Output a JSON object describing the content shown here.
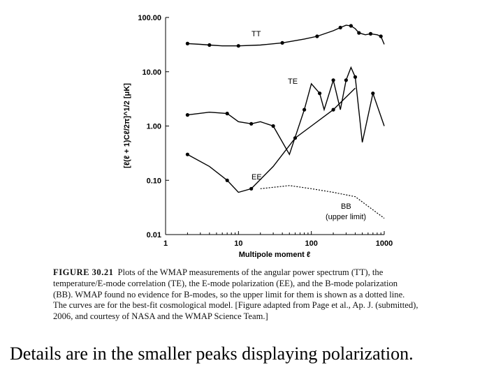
{
  "chart_data": {
    "type": "line",
    "title": "",
    "xlabel": "Multipole moment ℓ",
    "ylabel": "[ℓ(ℓ + 1)Cℓ/2π]^1/2 [μK]",
    "xscale": "log",
    "yscale": "log",
    "xlim": [
      1,
      1000
    ],
    "ylim": [
      0.01,
      100
    ],
    "x_ticks": [
      "1",
      "10",
      "100",
      "1000"
    ],
    "y_ticks": [
      "100.00",
      "10.00",
      "1.00",
      "0.10",
      "0.01"
    ],
    "series": [
      {
        "name": "TT",
        "x": [
          2,
          3,
          4,
          6,
          10,
          20,
          40,
          80,
          120,
          200,
          250,
          300,
          350,
          400,
          450,
          550,
          650,
          800,
          900,
          1000
        ],
        "y": [
          33,
          32,
          31,
          30,
          30,
          31,
          34,
          40,
          45,
          57,
          65,
          72,
          70,
          62,
          52,
          48,
          50,
          48,
          45,
          32
        ]
      },
      {
        "name": "TE",
        "x": [
          2,
          4,
          7,
          10,
          15,
          20,
          30,
          50,
          80,
          100,
          130,
          150,
          200,
          250,
          300,
          350,
          400,
          500,
          700,
          1000
        ],
        "y": [
          1.6,
          1.8,
          1.7,
          1.2,
          1.1,
          1.2,
          1.0,
          0.3,
          2.0,
          6.0,
          4.0,
          2.0,
          7.0,
          2.0,
          7.0,
          12.0,
          8.0,
          0.5,
          4.0,
          1.0
        ]
      },
      {
        "name": "EE",
        "x": [
          2,
          4,
          7,
          10,
          15,
          30,
          60,
          100,
          200,
          400
        ],
        "y": [
          0.3,
          0.18,
          0.1,
          0.06,
          0.07,
          0.18,
          0.6,
          1.0,
          2.0,
          5.0
        ]
      },
      {
        "name": "BB (upper limit)",
        "x": [
          20,
          50,
          100,
          200,
          400,
          800,
          1000
        ],
        "y": [
          0.07,
          0.08,
          0.07,
          0.06,
          0.05,
          0.025,
          0.02
        ]
      }
    ],
    "annotations": [
      "TT",
      "TE",
      "EE",
      "BB",
      "(upper limit)"
    ]
  },
  "caption": {
    "figure_number": "FIGURE 30.21",
    "lines": [
      "Plots of the WMAP measurements of the angular power spectrum (TT), the",
      "temperature/E-mode correlation (TE), the E-mode polarization (EE), and the B-mode polarization",
      "(BB). WMAP found no evidence for B-modes, so the upper limit for them is shown as a dotted line.",
      "The curves are for the best-fit cosmological model. [Figure adapted from Page et al., Ap. J. (submitted),",
      "2006, and courtesy of NASA and the WMAP Science Team.]"
    ]
  },
  "slide_text": "Details are in the smaller peaks displaying polarization."
}
